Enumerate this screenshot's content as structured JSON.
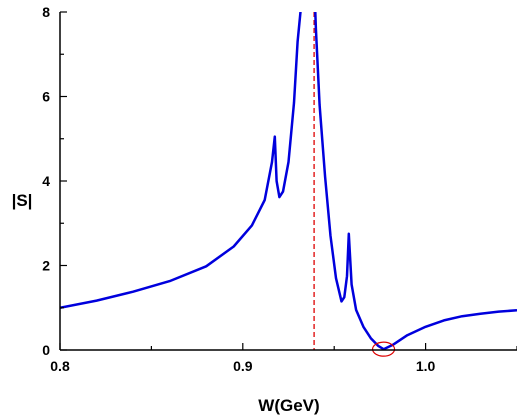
{
  "chart_data": {
    "type": "line",
    "title": "",
    "xlabel": "W(GeV)",
    "ylabel": "|S|",
    "xlim": [
      0.8,
      1.05
    ],
    "ylim": [
      0,
      8
    ],
    "x_ticks": [
      "0.8",
      "0.9",
      "1.0"
    ],
    "y_ticks": [
      "0",
      "2",
      "4",
      "6",
      "8"
    ],
    "grid": false,
    "series": [
      {
        "color": "#0000dd",
        "x": [
          0.8,
          0.82,
          0.84,
          0.86,
          0.88,
          0.895,
          0.905,
          0.912,
          0.916,
          0.9175,
          0.9185,
          0.92,
          0.922,
          0.925,
          0.928,
          0.93,
          0.932,
          0.933,
          0.9385,
          0.9395,
          0.94,
          0.942,
          0.945,
          0.948,
          0.951,
          0.954,
          0.9555,
          0.957,
          0.958,
          0.9595,
          0.962,
          0.966,
          0.97,
          0.974,
          0.977,
          0.982,
          0.99,
          1.0,
          1.01,
          1.02,
          1.03,
          1.04,
          1.05
        ],
        "y": [
          1.0,
          1.17,
          1.38,
          1.63,
          1.98,
          2.45,
          2.95,
          3.55,
          4.45,
          5.05,
          4.0,
          3.62,
          3.75,
          4.45,
          5.85,
          7.3,
          8.2,
          8.7,
          8.7,
          8.2,
          7.6,
          5.8,
          4.1,
          2.7,
          1.7,
          1.15,
          1.25,
          1.75,
          2.75,
          1.55,
          0.95,
          0.55,
          0.28,
          0.1,
          0.02,
          0.12,
          0.35,
          0.55,
          0.7,
          0.8,
          0.86,
          0.91,
          0.94
        ]
      }
    ],
    "annotations": [
      {
        "type": "vertical-dashed-line",
        "x": 0.939,
        "color": "#dd0000"
      },
      {
        "type": "circle-marker",
        "x": 0.977,
        "y": 0.02,
        "color": "#dd0000"
      }
    ]
  }
}
